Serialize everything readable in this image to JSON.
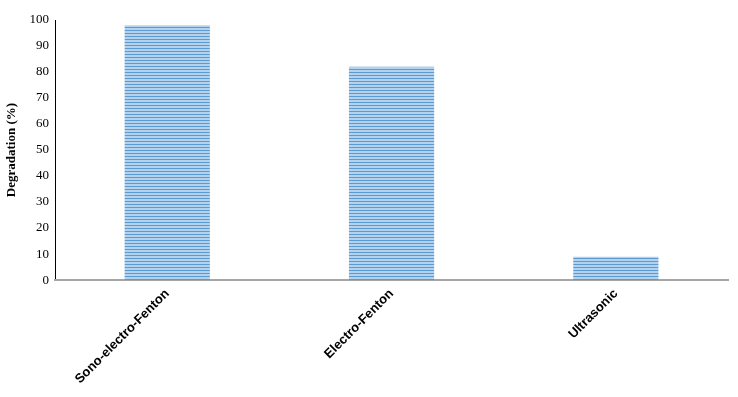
{
  "chart_data": {
    "type": "bar",
    "y_label": "Degradation (%)",
    "categories": [
      "Sono-electro-Fenton",
      "Electro-Fenton",
      "Ultrasonic"
    ],
    "values": [
      98,
      82,
      9
    ],
    "color": "#5b9bd5",
    "ylim": [
      0,
      100
    ],
    "yticks": [
      0,
      10,
      20,
      30,
      40,
      50,
      60,
      70,
      80,
      90,
      100
    ],
    "grid": false
  }
}
